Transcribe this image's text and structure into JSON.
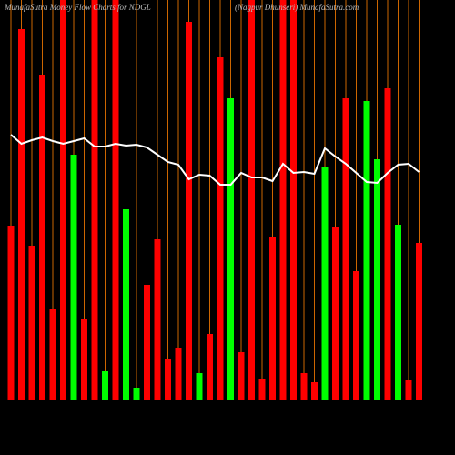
{
  "chart_data": {
    "type": "bar",
    "title": "MunafaSutra Money Flow Charts for NDGL",
    "subtitle": "(Nagpur Dhunseri) MunafaSutra.com",
    "values": [
      192,
      408,
      170,
      358,
      100,
      440,
      270,
      90,
      440,
      32,
      440,
      210,
      14,
      127,
      177,
      45,
      58,
      416,
      30,
      73,
      377,
      332,
      53,
      440,
      24,
      180,
      440,
      440,
      30,
      20,
      256,
      190,
      332,
      142,
      329,
      265,
      343,
      193,
      22,
      173
    ],
    "colors": [
      "#ff0000",
      "#ff0000",
      "#ff0000",
      "#ff0000",
      "#ff0000",
      "#ff0000",
      "#00ff00",
      "#ff0000",
      "#ff0000",
      "#00ff00",
      "#ff0000",
      "#00ff00",
      "#00ff00",
      "#ff0000",
      "#ff0000",
      "#ff0000",
      "#ff0000",
      "#ff0000",
      "#00ff00",
      "#ff0000",
      "#ff0000",
      "#00ff00",
      "#ff0000",
      "#ff0000",
      "#ff0000",
      "#ff0000",
      "#ff0000",
      "#ff0000",
      "#ff0000",
      "#ff0000",
      "#00ff00",
      "#ff0000",
      "#ff0000",
      "#ff0000",
      "#00ff00",
      "#00ff00",
      "#ff0000",
      "#00ff00",
      "#ff0000",
      "#ff0000"
    ],
    "line_values": [
      292,
      282,
      286,
      289,
      285,
      282,
      285,
      288,
      279,
      279,
      282,
      280,
      281,
      278,
      270,
      262,
      259,
      243,
      248,
      247,
      237,
      237,
      250,
      245,
      245,
      241,
      260,
      250,
      251,
      249,
      277,
      268,
      260,
      250,
      240,
      239,
      250,
      259,
      260,
      251
    ],
    "line_color": "#ffffff",
    "ylim": [
      0,
      440
    ],
    "grid": true,
    "grid_color": "#cc6600"
  }
}
